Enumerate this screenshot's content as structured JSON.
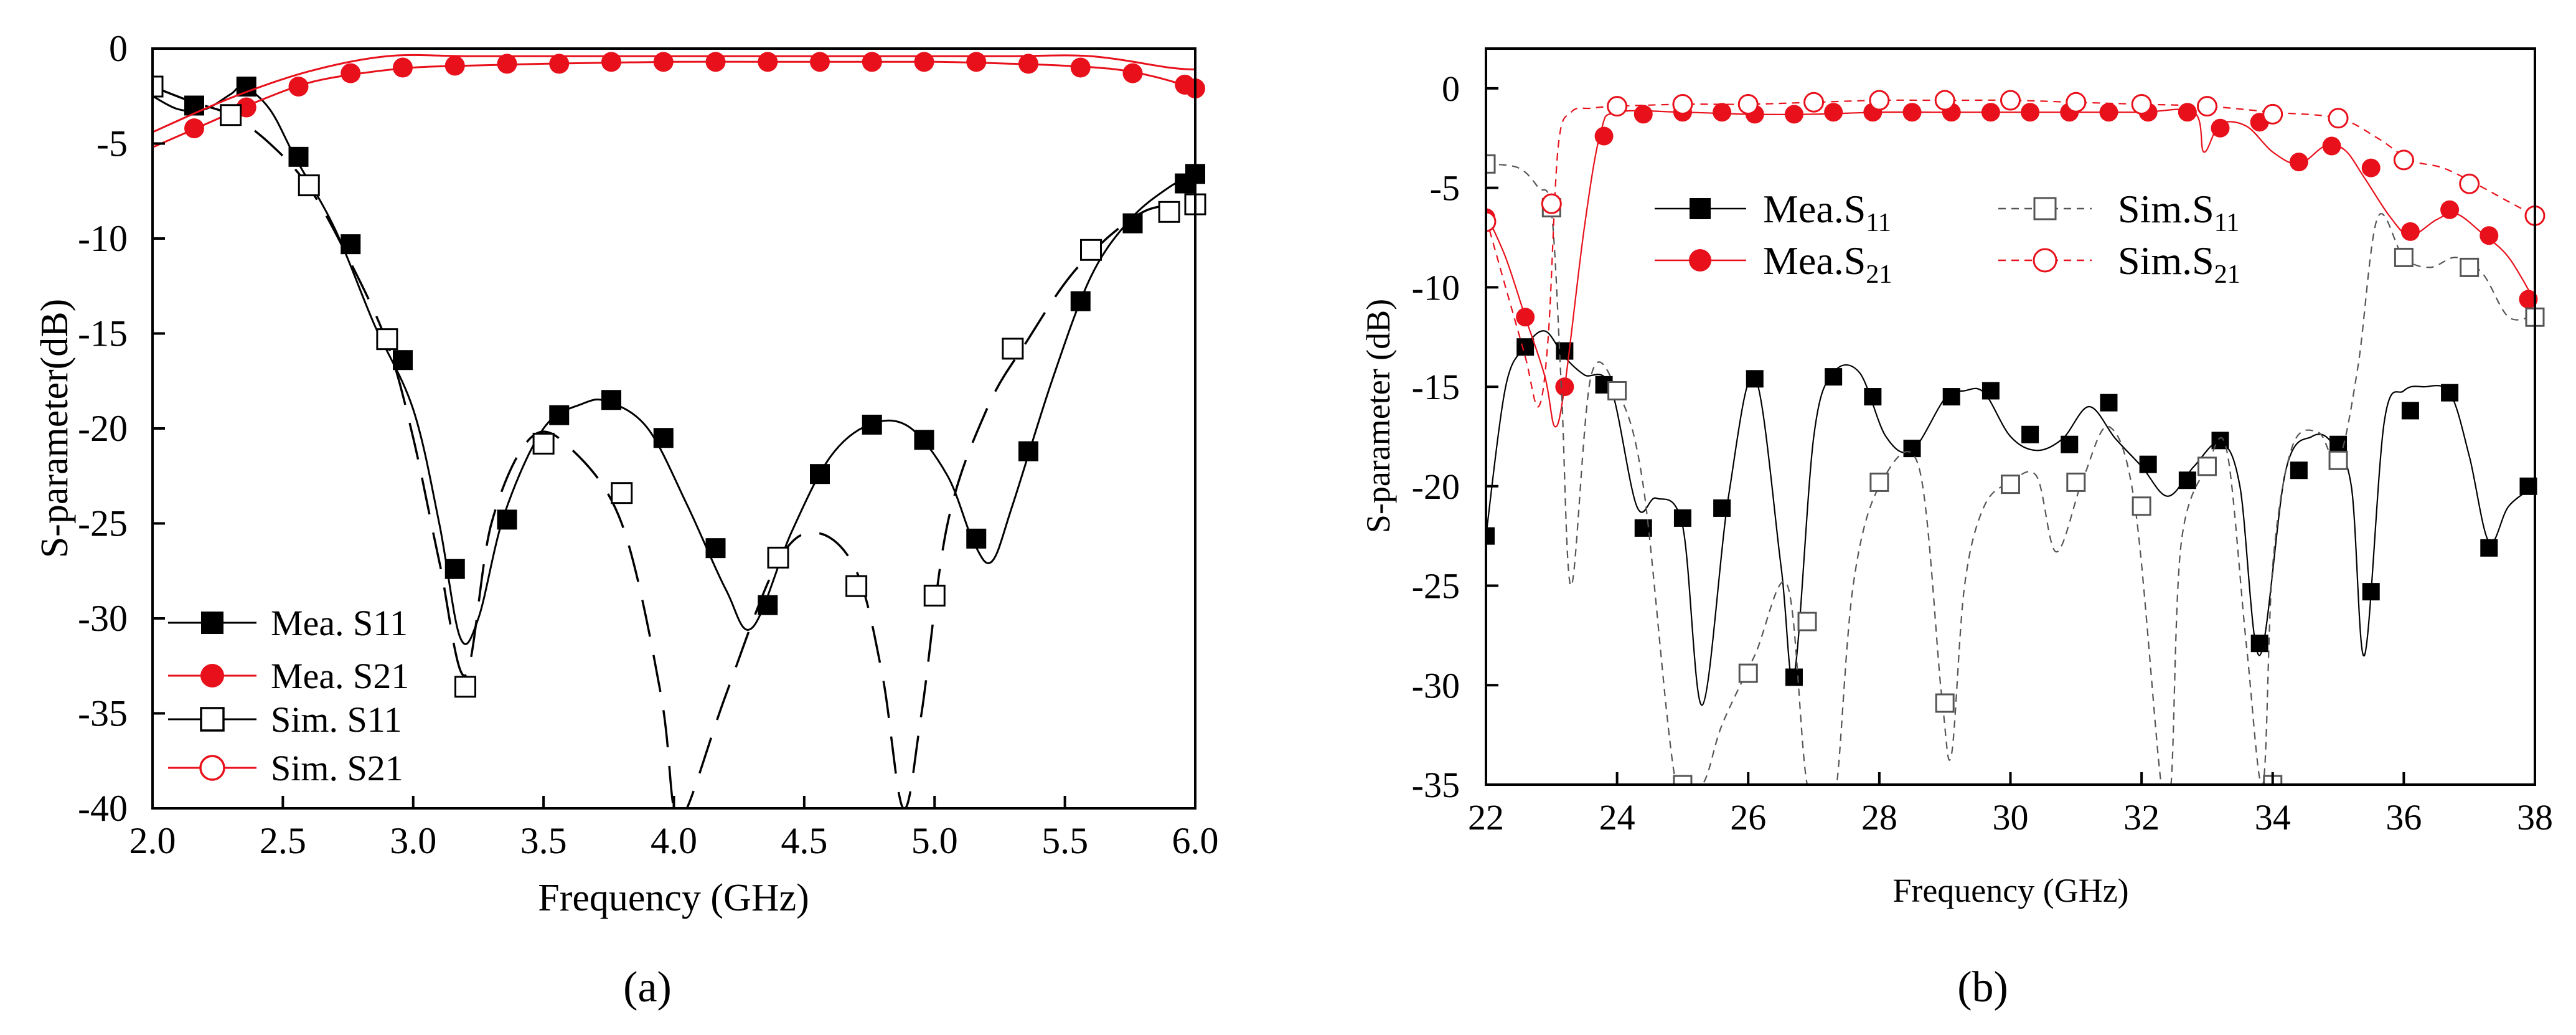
{
  "figure": {
    "captions": [
      "(a)",
      "(b)"
    ],
    "colors": {
      "measured_s11": "#000000",
      "measured_s21": "#e8101a",
      "simulated_s11": "#000000",
      "simulated_s21": "#e8101a"
    }
  },
  "chart_data": [
    {
      "type": "line",
      "caption": "(a)",
      "title": "",
      "xlabel": "Frequency (GHz)",
      "ylabel": "S-parameter(dB)",
      "xlim": [
        2.0,
        6.0
      ],
      "ylim": [
        -40,
        0
      ],
      "xticks": [
        2.0,
        2.5,
        3.0,
        3.5,
        4.0,
        4.5,
        5.0,
        5.5,
        6.0
      ],
      "xtick_labels": [
        "2.0",
        "2.5",
        "3.0",
        "3.5",
        "4.0",
        "4.5",
        "5.0",
        "5.5",
        "6.0"
      ],
      "yticks": [
        0,
        -5,
        -10,
        -15,
        -20,
        -25,
        -30,
        -35,
        -40
      ],
      "ytick_labels": [
        "0",
        "-5",
        "-10",
        "-15",
        "-20",
        "-25",
        "-30",
        "-35",
        "-40"
      ],
      "legend_position": "bottom-left",
      "series": [
        {
          "name": "Mea. S11",
          "legend": "Mea. S11",
          "marker": "filled-square",
          "line": "solid",
          "color": "#000000",
          "x": [
            2.0,
            2.1,
            2.2,
            2.3,
            2.35,
            2.45,
            2.55,
            2.7,
            2.85,
            3.0,
            3.1,
            3.18,
            3.25,
            3.35,
            3.5,
            3.65,
            3.75,
            3.9,
            4.05,
            4.2,
            4.3,
            4.45,
            4.6,
            4.75,
            4.9,
            5.05,
            5.15,
            5.22,
            5.3,
            5.45,
            5.6,
            5.75,
            5.9,
            6.0
          ],
          "y": [
            -2.5,
            -3.2,
            -3.2,
            -2.4,
            -2.0,
            -3.2,
            -5.8,
            -9.5,
            -14.5,
            -19.0,
            -25.0,
            -31.0,
            -30.0,
            -24.5,
            -20.0,
            -18.7,
            -18.6,
            -20.0,
            -24.0,
            -28.5,
            -30.5,
            -25.5,
            -21.5,
            -19.8,
            -19.9,
            -22.5,
            -26.0,
            -27.0,
            -24.0,
            -17.5,
            -12.0,
            -9.0,
            -7.3,
            -6.6
          ]
        },
        {
          "name": "Mea. S11 markers",
          "legend": "",
          "marker": "filled-square",
          "color": "#000000",
          "x": [
            2.16,
            2.36,
            2.56,
            2.76,
            2.96,
            3.16,
            3.36,
            3.56,
            3.76,
            3.96,
            4.16,
            4.36,
            4.56,
            4.76,
            4.96,
            5.16,
            5.36,
            5.56,
            5.76,
            5.96,
            6.0
          ],
          "y": [
            -3.0,
            -2.0,
            -5.7,
            -10.3,
            -16.4,
            -27.4,
            -24.8,
            -19.3,
            -18.5,
            -20.5,
            -26.3,
            -29.3,
            -22.4,
            -19.8,
            -20.6,
            -25.8,
            -21.2,
            -13.3,
            -9.2,
            -7.1,
            -6.6
          ]
        },
        {
          "name": "Mea. S21",
          "legend": "Mea. S21",
          "marker": "filled-circle",
          "line": "solid",
          "color": "#e8101a",
          "x": [
            2.0,
            2.2,
            2.4,
            2.6,
            2.8,
            3.0,
            3.2,
            3.5,
            4.0,
            4.5,
            5.0,
            5.3,
            5.5,
            5.7,
            5.85,
            6.0
          ],
          "y": [
            -5.2,
            -4.0,
            -2.8,
            -1.8,
            -1.3,
            -1.0,
            -0.9,
            -0.8,
            -0.7,
            -0.7,
            -0.7,
            -0.8,
            -0.9,
            -1.1,
            -1.5,
            -2.1
          ]
        },
        {
          "name": "Mea. S21 markers",
          "legend": "",
          "marker": "filled-circle",
          "color": "#e8101a",
          "x": [
            2.16,
            2.36,
            2.56,
            2.76,
            2.96,
            3.16,
            3.36,
            3.56,
            3.76,
            3.96,
            4.16,
            4.36,
            4.56,
            4.76,
            4.96,
            5.16,
            5.36,
            5.56,
            5.76,
            5.96,
            6.0
          ],
          "y": [
            -4.2,
            -3.1,
            -2.0,
            -1.3,
            -1.0,
            -0.9,
            -0.8,
            -0.8,
            -0.7,
            -0.7,
            -0.7,
            -0.7,
            -0.7,
            -0.7,
            -0.7,
            -0.7,
            -0.8,
            -1.0,
            -1.3,
            -1.9,
            -2.1
          ]
        },
        {
          "name": "Sim. S11",
          "legend": "Sim. S11",
          "marker": "open-square",
          "line": "long-dash",
          "color": "#000000",
          "x": [
            2.0,
            2.15,
            2.3,
            2.45,
            2.6,
            2.75,
            2.9,
            3.0,
            3.1,
            3.2,
            3.3,
            3.45,
            3.6,
            3.8,
            3.95,
            4.0,
            4.05,
            4.2,
            4.4,
            4.55,
            4.7,
            4.8,
            4.88,
            4.95,
            5.05,
            5.2,
            5.35,
            5.55,
            5.8,
            6.0
          ],
          "y": [
            -2.0,
            -2.8,
            -3.5,
            -5.0,
            -7.3,
            -11.0,
            -15.5,
            -20.5,
            -27.0,
            -33.0,
            -25.0,
            -20.5,
            -21.0,
            -25.0,
            -34.0,
            -40.0,
            -40.0,
            -34.0,
            -27.0,
            -25.5,
            -27.5,
            -33.0,
            -40.0,
            -35.0,
            -25.0,
            -19.0,
            -15.5,
            -11.5,
            -8.6,
            -8.3
          ]
        },
        {
          "name": "Sim. S11 markers",
          "legend": "",
          "marker": "open-square",
          "color": "#000000",
          "x": [
            2.0,
            2.3,
            2.6,
            2.9,
            3.2,
            3.5,
            3.8,
            4.4,
            4.7,
            5.0,
            5.3,
            5.6,
            5.9,
            6.0
          ],
          "y": [
            -2.0,
            -3.5,
            -7.2,
            -15.3,
            -33.6,
            -20.8,
            -23.4,
            -26.8,
            -28.3,
            -28.8,
            -15.8,
            -10.6,
            -8.6,
            -8.2
          ]
        },
        {
          "name": "Sim. S21",
          "legend": "Sim. S21",
          "marker": "open-circle",
          "line": "solid",
          "color": "#e8101a",
          "x": [
            2.0,
            2.3,
            2.6,
            2.9,
            3.2,
            3.5,
            3.8,
            4.1,
            4.4,
            4.7,
            5.0,
            5.3,
            5.6,
            5.9,
            6.0
          ],
          "y": [
            -4.4,
            -2.6,
            -1.2,
            -0.4,
            -0.4,
            -0.4,
            -0.4,
            -0.4,
            -0.4,
            -0.4,
            -0.4,
            -0.4,
            -0.4,
            -1.0,
            -1.1
          ]
        }
      ]
    },
    {
      "type": "line",
      "caption": "(b)",
      "title": "",
      "xlabel": "Frequency (GHz)",
      "ylabel": "S-parameter (dB)",
      "xlim": [
        22,
        38
      ],
      "ylim": [
        -35,
        2
      ],
      "xticks": [
        22,
        24,
        26,
        28,
        30,
        32,
        34,
        36,
        38
      ],
      "xtick_labels": [
        "22",
        "24",
        "26",
        "28",
        "30",
        "32",
        "34",
        "36",
        "38"
      ],
      "yticks": [
        0,
        -5,
        -10,
        -15,
        -20,
        -25,
        -30,
        -35
      ],
      "ytick_labels": [
        "0",
        "-5",
        "-10",
        "-15",
        "-20",
        "-25",
        "-30",
        "-35"
      ],
      "legend_position": "top-center",
      "series": [
        {
          "name": "Mea.S11",
          "legend": "Mea.S11",
          "marker": "filled-square",
          "line": "solid-thin",
          "color": "#000000",
          "x": [
            22.0,
            22.3,
            22.6,
            22.9,
            23.2,
            23.5,
            23.9,
            24.3,
            24.6,
            25.0,
            25.3,
            25.7,
            26.1,
            26.5,
            26.7,
            27.0,
            27.3,
            27.7,
            28.1,
            28.5,
            29.0,
            29.3,
            29.6,
            30.0,
            30.4,
            30.8,
            31.2,
            31.6,
            32.0,
            32.4,
            32.8,
            33.2,
            33.5,
            33.8,
            34.2,
            34.6,
            34.9,
            35.2,
            35.4,
            35.7,
            36.0,
            36.3,
            36.7,
            37.0,
            37.3,
            37.6,
            38.0
          ],
          "y": [
            -22.5,
            -15.0,
            -13.0,
            -12.2,
            -13.5,
            -14.4,
            -15.0,
            -21.0,
            -20.6,
            -22.0,
            -31.0,
            -20.5,
            -14.5,
            -24.0,
            -29.5,
            -17.5,
            -14.3,
            -14.3,
            -17.5,
            -18.2,
            -15.6,
            -15.2,
            -15.3,
            -17.5,
            -18.2,
            -17.6,
            -16.0,
            -17.6,
            -19.0,
            -20.5,
            -19.0,
            -17.8,
            -20.0,
            -28.5,
            -19.2,
            -17.5,
            -17.8,
            -20.0,
            -28.5,
            -16.8,
            -15.2,
            -15.0,
            -15.3,
            -18.5,
            -22.8,
            -21.0,
            -20.0
          ]
        },
        {
          "name": "Mea.S11 markers",
          "legend": "",
          "marker": "filled-square",
          "color": "#000000",
          "x": [
            22.0,
            22.6,
            23.2,
            23.8,
            24.4,
            25.0,
            25.6,
            26.1,
            26.7,
            27.3,
            27.9,
            28.5,
            29.1,
            29.7,
            30.3,
            30.9,
            31.5,
            32.1,
            32.7,
            33.2,
            33.8,
            34.4,
            35.0,
            35.5,
            36.1,
            36.7,
            37.3,
            37.9
          ],
          "y": [
            -22.5,
            -13.0,
            -13.2,
            -14.9,
            -22.1,
            -21.6,
            -21.1,
            -14.6,
            -29.6,
            -14.5,
            -15.5,
            -18.1,
            -15.5,
            -15.2,
            -17.4,
            -17.9,
            -15.8,
            -18.9,
            -19.7,
            -17.7,
            -27.9,
            -19.2,
            -17.9,
            -25.3,
            -16.2,
            -15.3,
            -23.1,
            -20.0
          ]
        },
        {
          "name": "Mea.S21",
          "legend": "Mea.S21",
          "marker": "filled-circle",
          "line": "solid-thin",
          "color": "#e8101a",
          "x": [
            22.0,
            22.3,
            22.6,
            22.9,
            23.05,
            23.2,
            23.5,
            23.75,
            24.0,
            25.0,
            26.0,
            27.0,
            28.0,
            29.0,
            30.0,
            31.0,
            32.0,
            32.8,
            32.95,
            33.2,
            33.6,
            34.0,
            34.4,
            34.8,
            35.1,
            35.4,
            35.8,
            36.1,
            36.5,
            36.8,
            37.2,
            37.6,
            38.0
          ],
          "y": [
            -6.3,
            -8.5,
            -11.5,
            -14.5,
            -17.0,
            -15.0,
            -7.0,
            -2.2,
            -1.2,
            -1.2,
            -1.3,
            -1.3,
            -1.2,
            -1.2,
            -1.2,
            -1.2,
            -1.2,
            -1.2,
            -3.2,
            -1.8,
            -1.9,
            -3.2,
            -3.8,
            -2.9,
            -3.1,
            -4.5,
            -6.5,
            -7.4,
            -6.6,
            -6.3,
            -7.3,
            -8.5,
            -10.7
          ]
        },
        {
          "name": "Mea.S21 markers",
          "legend": "",
          "marker": "filled-circle",
          "color": "#e8101a",
          "x": [
            22.0,
            22.6,
            23.2,
            23.8,
            24.4,
            25.0,
            25.6,
            26.1,
            26.7,
            27.3,
            27.9,
            28.5,
            29.1,
            29.7,
            30.3,
            30.9,
            31.5,
            32.1,
            32.7,
            33.2,
            33.8,
            34.4,
            34.9,
            35.5,
            36.1,
            36.7,
            37.3,
            37.9
          ],
          "y": [
            -6.5,
            -11.5,
            -15.0,
            -2.4,
            -1.3,
            -1.2,
            -1.2,
            -1.3,
            -1.3,
            -1.2,
            -1.2,
            -1.2,
            -1.2,
            -1.2,
            -1.2,
            -1.2,
            -1.2,
            -1.2,
            -1.2,
            -2.0,
            -1.7,
            -3.7,
            -2.9,
            -4.0,
            -7.2,
            -6.1,
            -7.4,
            -10.6
          ]
        },
        {
          "name": "Sim.S11",
          "legend": "Sim.S11",
          "marker": "open-square",
          "line": "short-dash",
          "color": "#555555",
          "x": [
            22.0,
            22.5,
            22.8,
            23.0,
            23.15,
            23.3,
            23.6,
            24.0,
            24.4,
            24.9,
            25.3,
            25.6,
            26.1,
            26.6,
            26.9,
            27.2,
            27.35,
            27.6,
            28.0,
            28.6,
            28.95,
            29.1,
            29.3,
            29.6,
            30.0,
            30.4,
            30.7,
            31.1,
            31.5,
            31.9,
            32.3,
            32.45,
            32.6,
            33.0,
            33.3,
            33.6,
            33.85,
            34.0,
            34.3,
            34.7,
            35.0,
            35.3,
            35.6,
            36.0,
            36.4,
            36.8,
            37.2,
            37.6,
            38.0
          ],
          "y": [
            -3.8,
            -4.0,
            -5.0,
            -6.2,
            -15.0,
            -25.0,
            -14.5,
            -15.2,
            -20.0,
            -35.0,
            -35.0,
            -32.0,
            -28.5,
            -25.0,
            -35.0,
            -35.0,
            -35.0,
            -25.0,
            -20.0,
            -19.0,
            -30.5,
            -33.5,
            -25.0,
            -21.0,
            -19.8,
            -19.5,
            -23.3,
            -19.7,
            -17.0,
            -21.0,
            -35.0,
            -35.0,
            -23.0,
            -19.0,
            -18.2,
            -28.0,
            -35.0,
            -24.0,
            -18.0,
            -17.3,
            -18.7,
            -14.0,
            -6.5,
            -8.5,
            -9.0,
            -8.5,
            -9.3,
            -11.5,
            -11.4
          ]
        },
        {
          "name": "Sim.S11 markers",
          "legend": "",
          "marker": "open-square",
          "color": "#555555",
          "x": [
            22.0,
            23.0,
            24.0,
            25.0,
            26.0,
            26.9,
            28.0,
            29.0,
            30.0,
            31.0,
            32.0,
            33.0,
            34.0,
            35.0,
            36.0,
            37.0,
            38.0
          ],
          "y": [
            -3.8,
            -6.0,
            -15.2,
            -35.0,
            -29.4,
            -26.8,
            -19.8,
            -30.9,
            -19.9,
            -19.8,
            -21.0,
            -19.0,
            -35.0,
            -18.7,
            -8.5,
            -9.0,
            -11.5
          ]
        },
        {
          "name": "Sim.S21",
          "legend": "Sim.S21",
          "marker": "open-circle",
          "line": "short-dash",
          "color": "#e8101a",
          "x": [
            22.0,
            22.3,
            22.6,
            22.8,
            22.95,
            23.1,
            23.3,
            23.6,
            24.0,
            25.0,
            26.0,
            27.0,
            28.0,
            29.0,
            30.0,
            31.0,
            32.0,
            33.0,
            34.0,
            35.0,
            35.6,
            36.1,
            36.6,
            37.1,
            37.6,
            38.0
          ],
          "y": [
            -6.5,
            -10.0,
            -13.5,
            -16.0,
            -12.5,
            -3.0,
            -1.2,
            -1.0,
            -0.9,
            -0.8,
            -0.8,
            -0.7,
            -0.6,
            -0.6,
            -0.6,
            -0.7,
            -0.8,
            -0.9,
            -1.2,
            -1.5,
            -2.5,
            -3.6,
            -4.0,
            -4.8,
            -5.7,
            -6.4
          ]
        },
        {
          "name": "Sim.S21 markers",
          "legend": "",
          "marker": "open-circle",
          "color": "#e8101a",
          "x": [
            22.0,
            23.0,
            24.0,
            25.0,
            26.0,
            27.0,
            28.0,
            29.0,
            30.0,
            31.0,
            32.0,
            33.0,
            34.0,
            35.0,
            36.0,
            37.0,
            38.0
          ],
          "y": [
            -6.7,
            -5.8,
            -0.9,
            -0.8,
            -0.8,
            -0.7,
            -0.6,
            -0.6,
            -0.6,
            -0.7,
            -0.8,
            -0.9,
            -1.3,
            -1.5,
            -3.6,
            -4.8,
            -6.4
          ]
        }
      ]
    }
  ]
}
